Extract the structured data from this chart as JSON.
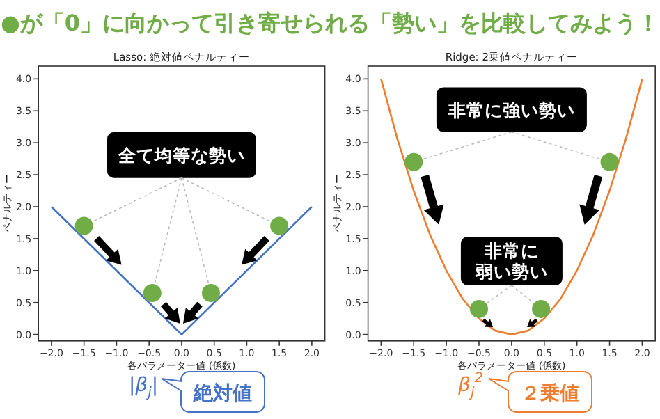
{
  "chart_data": [
    {
      "type": "line",
      "title": "Lasso: 絶対値ペナルティー",
      "xlabel": "各パラメーター値 (係数)",
      "ylabel": "ペナルティー",
      "annotations": [
        "●が「0」に向かって引き寄せられる「勢い」を比較してみよう！",
        {
          "text": "全て均等な勢い",
          "x": -1.5,
          "y": 1.7
        },
        "|β$_{j}$|",
        "絶対値"
      ],
      "xlim": [
        -2.2,
        2.2
      ],
      "ylim": [
        -0.1,
        4.2
      ],
      "xticks": [
        {
          "value": -2,
          "label": "−2.0"
        },
        {
          "value": -1.5,
          "label": "−1.5"
        },
        {
          "value": -1,
          "label": "−1.0"
        },
        {
          "value": -0.5,
          "label": "−0.5"
        },
        {
          "value": 0,
          "label": "0.0"
        },
        {
          "value": 0.5,
          "label": "0.5"
        },
        {
          "value": 1,
          "label": "1.0"
        },
        {
          "value": 1.5,
          "label": "1.5"
        },
        {
          "value": 2,
          "label": "2.0"
        }
      ],
      "yticks": [
        {
          "value": 0,
          "label": "0.0"
        },
        0.5,
        {
          "value": 1,
          "label": "1.0"
        },
        1.5,
        {
          "value": 2,
          "label": "2.0"
        },
        2.5,
        {
          "value": 3,
          "label": "3.0"
        },
        3.5,
        {
          "value": 4,
          "label": "4.0"
        }
      ],
      "series": [
        {
          "type": "line",
          "color": "#4472c4",
          "x": [
            -2,
            0,
            2
          ],
          "values": [
            2,
            0,
            2
          ]
        },
        {
          "type": "scatter",
          "color": "#70ad47",
          "x": [
            -1.5,
            1.5,
            -0.45,
            0.45
          ],
          "values": [
            1.7,
            1.7,
            0.65,
            0.65
          ]
        }
      ]
    },
    {
      "type": "line",
      "title": "Ridge: 2乗値ペナルティー",
      "xlabel": "各パラメーター値 (係数)",
      "ylabel": "ペナルティー",
      "annotations": [
        {
          "text": "非常に強い勢い",
          "x": -1.5,
          "y": 2.7
        },
        "非常に弱い勢い",
        "β$_{j}$$^{2}$",
        "２乗値"
      ],
      "xlim": [
        -2.2,
        2.2
      ],
      "ylim": [
        -0.1,
        4.2
      ],
      "xticks": [
        {
          "value": -2,
          "label": "−2.0"
        },
        {
          "value": -1.5,
          "label": "−1.5"
        },
        {
          "value": -1,
          "label": "−1.0"
        },
        {
          "value": -0.5,
          "label": "−0.5"
        },
        {
          "value": 0,
          "label": "0.0"
        },
        {
          "value": 0.5,
          "label": "0.5"
        },
        {
          "value": 1,
          "label": "1.0"
        },
        {
          "value": 1.5,
          "label": "1.5"
        },
        {
          "value": 2,
          "label": "2.0"
        }
      ],
      "yticks": [
        {
          "value": 0,
          "label": "0.0"
        },
        0.5,
        {
          "value": 1,
          "label": "1.0"
        },
        1.5,
        {
          "value": 2,
          "label": "2.0"
        },
        2.5,
        {
          "value": 3,
          "label": "3.0"
        },
        3.5,
        {
          "value": 4,
          "label": "4.0"
        }
      ],
      "series": [
        {
          "type": "line",
          "color": "#ed7d31",
          "x": [
            -2,
            -1.75,
            -1.5,
            -1.25,
            -1,
            -0.75,
            -0.5,
            -0.25,
            0,
            0.25,
            0.5,
            0.75,
            1,
            1.25,
            1.5,
            1.75,
            2
          ],
          "values": [
            4,
            3.06,
            2.25,
            1.56,
            1,
            0.56,
            0.25,
            0.06,
            0,
            0.06,
            0.25,
            0.56,
            1,
            1.56,
            2.25,
            3.06,
            4
          ]
        },
        {
          "type": "scatter",
          "color": "#70ad47",
          "x": [
            -1.5,
            1.5,
            -0.5,
            0.45
          ],
          "values": [
            2.7,
            2.7,
            0.4,
            0.4
          ]
        }
      ]
    }
  ]
}
